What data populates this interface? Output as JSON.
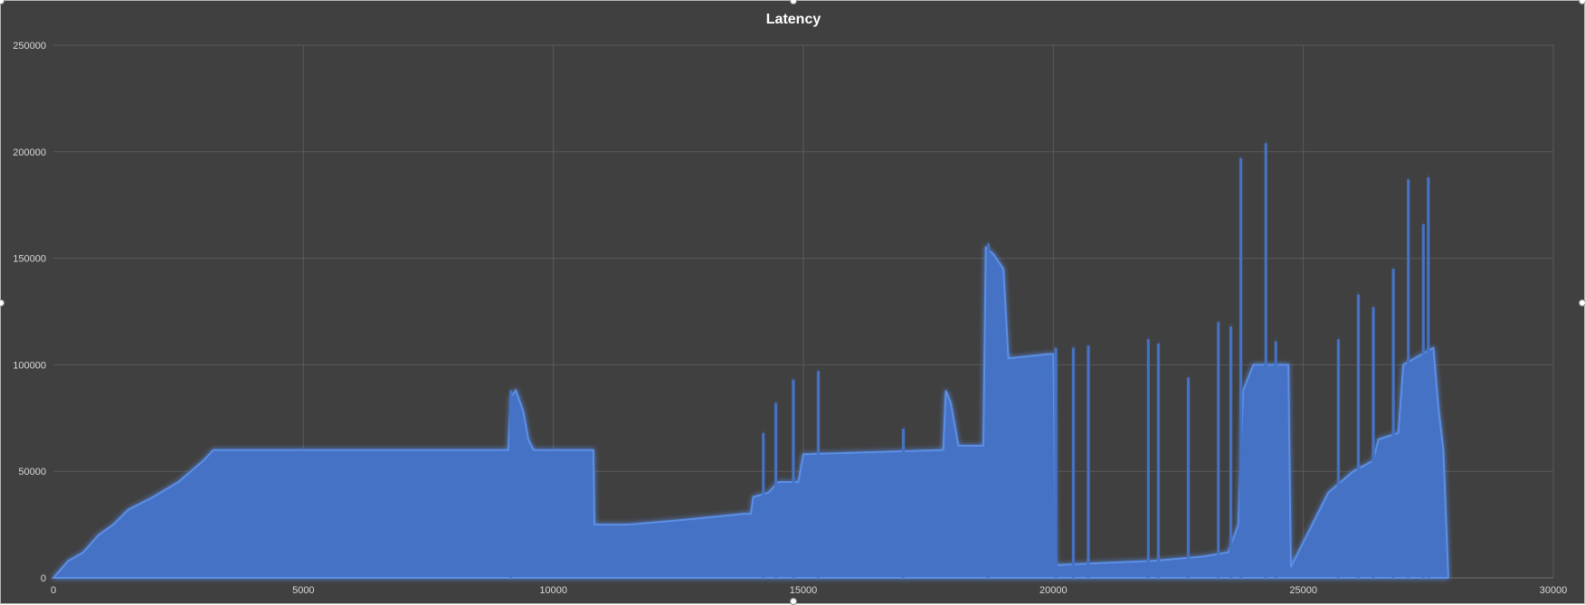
{
  "chart_data": {
    "type": "area",
    "title": "Latency",
    "xlabel": "",
    "ylabel": "",
    "xlim": [
      0,
      30000
    ],
    "ylim": [
      0,
      250000
    ],
    "x_ticks": [
      "0",
      "5000",
      "10000",
      "15000",
      "20000",
      "25000",
      "30000"
    ],
    "y_ticks": [
      "0",
      "50000",
      "100000",
      "150000",
      "200000",
      "250000"
    ],
    "grid": true,
    "legend": "none",
    "colors": {
      "series": "#4472c4",
      "glow": "#5b8fe6",
      "background": "#404040",
      "grid": "#5a5a5a",
      "text": "#d9d9d9"
    },
    "series": [
      {
        "values_format": "[x, y] approximate envelope (upper bound of dense signal)",
        "envelope": [
          [
            0,
            0
          ],
          [
            300,
            8000
          ],
          [
            600,
            12000
          ],
          [
            900,
            20000
          ],
          [
            1200,
            25000
          ],
          [
            1500,
            32000
          ],
          [
            2000,
            38000
          ],
          [
            2500,
            45000
          ],
          [
            3000,
            55000
          ],
          [
            3200,
            60000
          ],
          [
            9100,
            60000
          ],
          [
            9150,
            85000
          ],
          [
            9250,
            88000
          ],
          [
            9400,
            78000
          ],
          [
            9500,
            65000
          ],
          [
            9600,
            60000
          ],
          [
            10800,
            60000
          ],
          [
            10820,
            25000
          ],
          [
            11500,
            25000
          ],
          [
            12500,
            27000
          ],
          [
            13800,
            30000
          ],
          [
            13950,
            30000
          ],
          [
            14000,
            38000
          ],
          [
            14300,
            40000
          ],
          [
            14500,
            45000
          ],
          [
            14900,
            45000
          ],
          [
            15000,
            58000
          ],
          [
            17800,
            60000
          ],
          [
            17850,
            88000
          ],
          [
            17950,
            82000
          ],
          [
            18100,
            62000
          ],
          [
            18600,
            62000
          ],
          [
            18650,
            155000
          ],
          [
            18800,
            152000
          ],
          [
            19000,
            145000
          ],
          [
            19100,
            103000
          ],
          [
            19900,
            105000
          ],
          [
            20000,
            105000
          ],
          [
            20050,
            6000
          ],
          [
            21000,
            7000
          ],
          [
            22000,
            8000
          ],
          [
            23000,
            10000
          ],
          [
            23500,
            12000
          ],
          [
            23700,
            25000
          ],
          [
            23800,
            88000
          ],
          [
            24000,
            100000
          ],
          [
            24500,
            100000
          ],
          [
            24700,
            100000
          ],
          [
            24750,
            5000
          ],
          [
            25500,
            40000
          ],
          [
            26000,
            50000
          ],
          [
            26400,
            55000
          ],
          [
            26500,
            65000
          ],
          [
            26900,
            68000
          ],
          [
            27000,
            100000
          ],
          [
            27600,
            108000
          ],
          [
            27700,
            80000
          ],
          [
            27800,
            60000
          ],
          [
            27900,
            0
          ]
        ],
        "spikes": [
          [
            9150,
            88000
          ],
          [
            14200,
            68000
          ],
          [
            14450,
            82000
          ],
          [
            14800,
            93000
          ],
          [
            15300,
            97000
          ],
          [
            17000,
            70000
          ],
          [
            18700,
            157000
          ],
          [
            20050,
            108000
          ],
          [
            20400,
            108000
          ],
          [
            20700,
            109000
          ],
          [
            21900,
            112000
          ],
          [
            22100,
            110000
          ],
          [
            22700,
            94000
          ],
          [
            23300,
            120000
          ],
          [
            23550,
            118000
          ],
          [
            23750,
            197000
          ],
          [
            24250,
            204000
          ],
          [
            24450,
            111000
          ],
          [
            25700,
            112000
          ],
          [
            26100,
            133000
          ],
          [
            26400,
            127000
          ],
          [
            26800,
            145000
          ],
          [
            27100,
            187000
          ],
          [
            27400,
            166000
          ],
          [
            27500,
            188000
          ]
        ]
      }
    ]
  }
}
